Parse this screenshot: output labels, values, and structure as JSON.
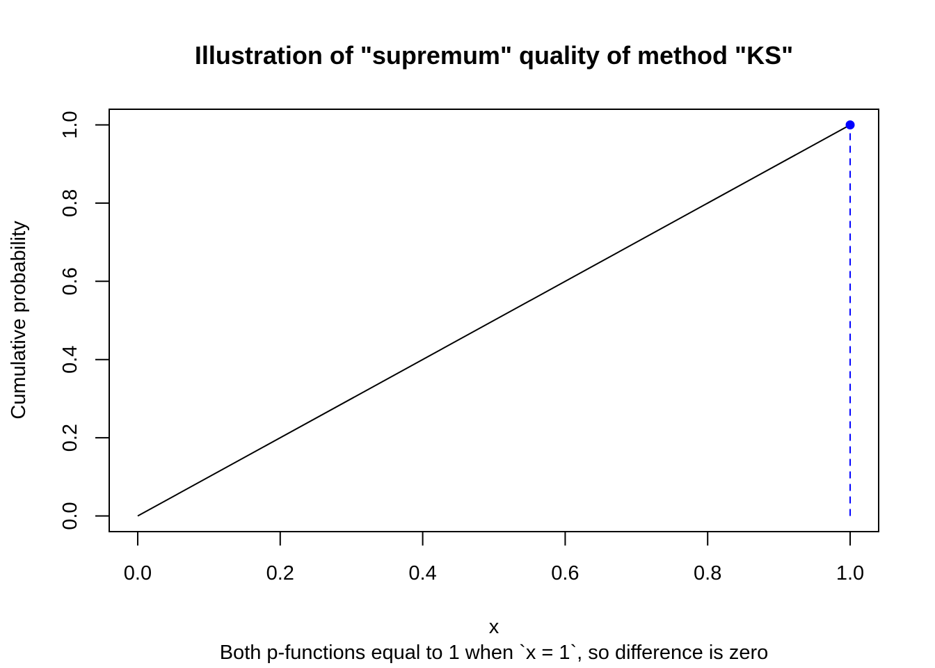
{
  "chart_data": {
    "type": "line",
    "title": "Illustration of \"supremum\" quality of method \"KS\"",
    "xlabel": "x",
    "ylabel": "Cumulative probability",
    "subtitle": "Both p-functions equal to 1 when `x = 1`, so difference is zero",
    "xlim": [
      -0.04,
      1.04
    ],
    "ylim": [
      -0.04,
      1.04
    ],
    "xticks": [
      "0.0",
      "0.2",
      "0.4",
      "0.6",
      "0.8",
      "1.0"
    ],
    "yticks": [
      "0.0",
      "0.2",
      "0.4",
      "0.6",
      "0.8",
      "1.0"
    ],
    "grid": false,
    "series": [
      {
        "x": [
          0.0,
          1.0
        ],
        "y": [
          0.0,
          1.0
        ],
        "color": "#000000",
        "style": "solid"
      }
    ],
    "supremum": {
      "x": 1.0,
      "y_from": 0.0,
      "y_to": 1.0,
      "color": "#0000ff",
      "style": "dashed"
    },
    "point": {
      "x": 1.0,
      "y": 1.0,
      "color": "#0000ff"
    }
  }
}
